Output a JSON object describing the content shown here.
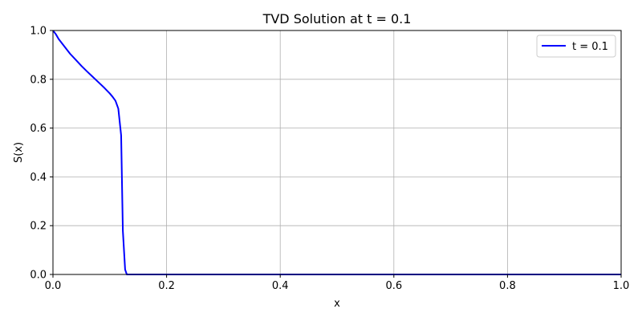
{
  "chart_data": {
    "type": "line",
    "title": "TVD Solution at t = 0.1",
    "xlabel": "x",
    "ylabel": "S(x)",
    "xlim": [
      0.0,
      1.0
    ],
    "ylim": [
      0.0,
      1.0
    ],
    "xticks": [
      "0.0",
      "0.2",
      "0.4",
      "0.6",
      "0.8",
      "1.0"
    ],
    "yticks": [
      "0.0",
      "0.2",
      "0.4",
      "0.6",
      "0.8",
      "1.0"
    ],
    "grid": true,
    "legend_position": "top-right",
    "series": [
      {
        "name": "t = 0.1",
        "color": "#0000ff",
        "x": [
          0.0,
          0.005,
          0.01,
          0.02,
          0.03,
          0.04,
          0.05,
          0.06,
          0.07,
          0.08,
          0.09,
          0.1,
          0.105,
          0.11,
          0.115,
          0.12,
          0.123,
          0.127,
          0.13,
          0.135,
          0.2,
          0.4,
          0.6,
          0.8,
          1.0
        ],
        "y": [
          1.0,
          0.985,
          0.965,
          0.935,
          0.905,
          0.88,
          0.855,
          0.832,
          0.81,
          0.788,
          0.766,
          0.742,
          0.728,
          0.712,
          0.68,
          0.57,
          0.18,
          0.02,
          0.0,
          0.0,
          0.0,
          0.0,
          0.0,
          0.0,
          0.0
        ]
      }
    ]
  }
}
